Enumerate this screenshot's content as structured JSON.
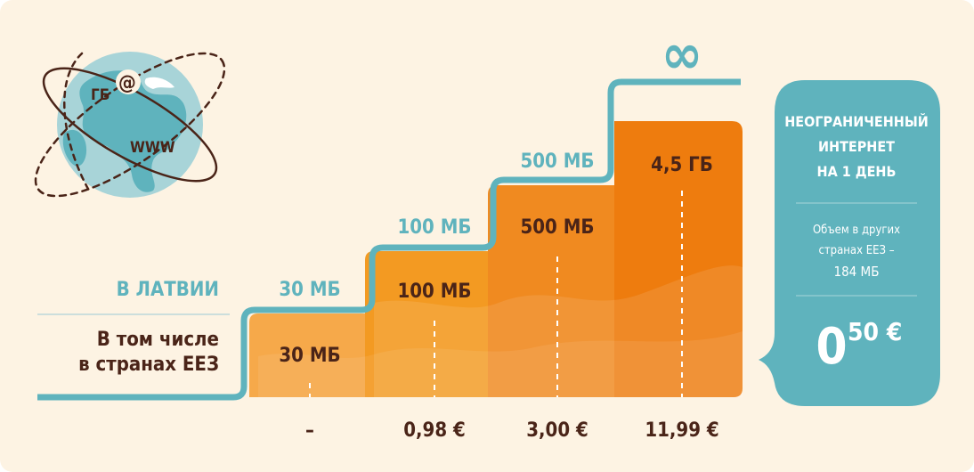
{
  "colors": {
    "background": "#fdf3e3",
    "teal": "#5fb3bd",
    "brown": "#4a2418",
    "bar_light": "#f6a94a",
    "bar_mid1": "#f39a22",
    "bar_mid2": "#f08a20",
    "bar_dark": "#ee7c0e"
  },
  "globe": {
    "label_gb": "ГБ",
    "label_at": "@",
    "label_www": "WWW"
  },
  "left_labels": {
    "latvia": "В ЛАТВИИ",
    "eea_line1": "В том числе",
    "eea_line2": "в странах ЕЕЗ"
  },
  "infinity_symbol": "∞",
  "chart_data": {
    "type": "bar",
    "categories": [
      "30 МБ",
      "100 МБ",
      "500 МБ",
      "∞"
    ],
    "series": [
      {
        "name": "В ЛАТВИИ",
        "values_label": [
          "30 МБ",
          "100 МБ",
          "500 МБ",
          "∞"
        ]
      },
      {
        "name": "В том числе в странах ЕЕЗ",
        "values_label": [
          "30 МБ",
          "100 МБ",
          "500 МБ",
          "4,5 ГБ"
        ]
      }
    ],
    "prices": [
      "–",
      "0,98 €",
      "3,00 €",
      "11,99 €"
    ]
  },
  "bars": [
    {
      "latvia": "30 МБ",
      "eea": "30 МБ",
      "price": "–"
    },
    {
      "latvia": "100 МБ",
      "eea": "100 МБ",
      "price": "0,98 €"
    },
    {
      "latvia": "500 МБ",
      "eea": "500 МБ",
      "price": "3,00 €"
    },
    {
      "latvia": "",
      "eea": "4,5 ГБ",
      "price": "11,99 €"
    }
  ],
  "offer": {
    "title_line1": "НЕОГРАНИЧЕННЫЙ",
    "title_line2": "ИНТЕРНЕТ",
    "title_line3": "НА 1 ДЕНЬ",
    "note_line1": "Объем в других",
    "note_line2": "странах ЕЕЗ –",
    "note_line3": "184 МБ",
    "price_main": "0",
    "price_cents": "50 €"
  }
}
